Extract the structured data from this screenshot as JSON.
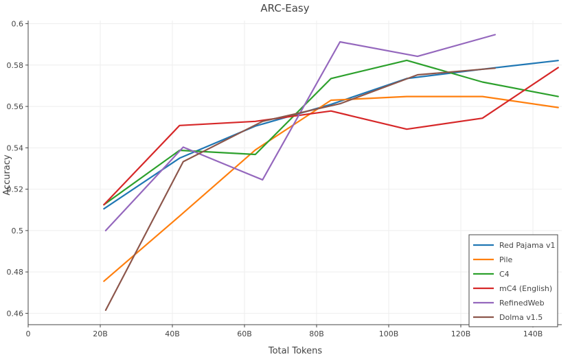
{
  "chart_data": {
    "type": "line",
    "title": "ARC-Easy",
    "xlabel": "Total Tokens",
    "ylabel": "Accuracy",
    "xlim": [
      0,
      148
    ],
    "ylim": [
      0.4545,
      0.6015
    ],
    "x_ticks": [
      {
        "value": 0,
        "label": "0"
      },
      {
        "value": 20,
        "label": "20B"
      },
      {
        "value": 40,
        "label": "40B"
      },
      {
        "value": 60,
        "label": "60B"
      },
      {
        "value": 80,
        "label": "80B"
      },
      {
        "value": 100,
        "label": "100B"
      },
      {
        "value": 120,
        "label": "120B"
      },
      {
        "value": 140,
        "label": "140B"
      }
    ],
    "y_ticks": [
      {
        "value": 0.46,
        "label": "0.46"
      },
      {
        "value": 0.48,
        "label": "0.48"
      },
      {
        "value": 0.5,
        "label": "0.5"
      },
      {
        "value": 0.52,
        "label": "0.52"
      },
      {
        "value": 0.54,
        "label": "0.54"
      },
      {
        "value": 0.56,
        "label": "0.56"
      },
      {
        "value": 0.58,
        "label": "0.58"
      },
      {
        "value": 0.6,
        "label": "0.6"
      }
    ],
    "grid": true,
    "legend_position": "bottom-right",
    "series": [
      {
        "name": "Red Pajama v1",
        "color": "#1f77b4",
        "points": [
          [
            21,
            0.5105
          ],
          [
            42,
            0.535
          ],
          [
            63,
            0.5505
          ],
          [
            84,
            0.561
          ],
          [
            105,
            0.5735
          ],
          [
            126,
            0.578
          ],
          [
            147,
            0.5822
          ]
        ]
      },
      {
        "name": "Pile",
        "color": "#ff7f0e",
        "points": [
          [
            21,
            0.4755
          ],
          [
            42,
            0.507
          ],
          [
            63,
            0.539
          ],
          [
            84,
            0.563
          ],
          [
            105,
            0.5648
          ],
          [
            126,
            0.5648
          ],
          [
            147,
            0.5595
          ]
        ]
      },
      {
        "name": "C4",
        "color": "#2ca02c",
        "points": [
          [
            21,
            0.5125
          ],
          [
            42,
            0.5388
          ],
          [
            63,
            0.5368
          ],
          [
            84,
            0.5735
          ],
          [
            105,
            0.5823
          ],
          [
            126,
            0.5718
          ],
          [
            147,
            0.5648
          ]
        ]
      },
      {
        "name": "mC4 (English)",
        "color": "#d62728",
        "points": [
          [
            21,
            0.5125
          ],
          [
            42,
            0.5508
          ],
          [
            63,
            0.5528
          ],
          [
            84,
            0.5578
          ],
          [
            105,
            0.549
          ],
          [
            126,
            0.5543
          ],
          [
            147,
            0.5788
          ]
        ]
      },
      {
        "name": "RefinedWeb",
        "color": "#9467bd",
        "points": [
          [
            21.5,
            0.5
          ],
          [
            43,
            0.5403
          ],
          [
            65,
            0.5245
          ],
          [
            86.5,
            0.5912
          ],
          [
            108,
            0.5842
          ],
          [
            129.5,
            0.5947
          ]
        ]
      },
      {
        "name": "Dolma v1.5",
        "color": "#8c564b",
        "points": [
          [
            21.5,
            0.4615
          ],
          [
            43,
            0.5333
          ],
          [
            65,
            0.5528
          ],
          [
            86.5,
            0.5613
          ],
          [
            108,
            0.5753
          ],
          [
            129.5,
            0.5785
          ]
        ]
      }
    ]
  }
}
